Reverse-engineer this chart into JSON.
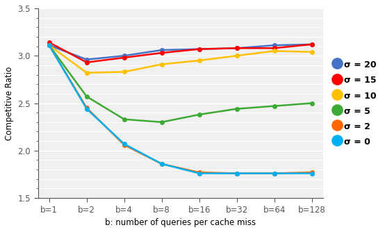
{
  "x_labels": [
    "b=1",
    "b=2",
    "b=4",
    "b=8",
    "b=16",
    "b=32",
    "b=64",
    "b=128"
  ],
  "x_values": [
    0,
    1,
    2,
    3,
    4,
    5,
    6,
    7
  ],
  "series": [
    {
      "label": "σ = 20",
      "color": "#4472C4",
      "marker": "o",
      "data": [
        3.11,
        2.96,
        3.0,
        3.06,
        3.07,
        3.08,
        3.11,
        3.12
      ]
    },
    {
      "label": "σ = 15",
      "color": "#FF0000",
      "marker": "o",
      "data": [
        3.14,
        2.93,
        2.98,
        3.03,
        3.07,
        3.08,
        3.08,
        3.12
      ]
    },
    {
      "label": "σ = 10",
      "color": "#FFC000",
      "marker": "o",
      "data": [
        3.11,
        2.82,
        2.83,
        2.91,
        2.95,
        3.0,
        3.05,
        3.04
      ]
    },
    {
      "label": "σ = 5",
      "color": "#3DAA35",
      "marker": "o",
      "data": [
        3.11,
        2.57,
        2.33,
        2.3,
        2.38,
        2.44,
        2.47,
        2.5
      ]
    },
    {
      "label": "σ = 2",
      "color": "#FF6600",
      "marker": "o",
      "data": [
        3.11,
        2.45,
        2.06,
        1.86,
        1.77,
        1.76,
        1.76,
        1.77
      ]
    },
    {
      "label": "σ = 0",
      "color": "#00B0F0",
      "marker": "o",
      "data": [
        3.11,
        2.44,
        2.07,
        1.86,
        1.76,
        1.76,
        1.76,
        1.76
      ]
    }
  ],
  "ylabel": "Competitive Ratio",
  "xlabel": "b: number of queries per cache miss",
  "ylim": [
    1.5,
    3.5
  ],
  "yticks_major": [
    1.5,
    2.0,
    2.5,
    3.0,
    3.5
  ],
  "background_color": "#FFFFFF",
  "plot_bg_color": "#F0F0F0",
  "grid_color": "#FFFFFF",
  "marker_size": 5,
  "line_width": 1.8,
  "legend_labels": [
    "σ = 20",
    "σ = 15",
    "σ = 10",
    "σ = 5",
    "σ = 2",
    "σ = 0"
  ],
  "legend_colors": [
    "#4472C4",
    "#FF0000",
    "#FFC000",
    "#3DAA35",
    "#FF6600",
    "#00B0F0"
  ]
}
